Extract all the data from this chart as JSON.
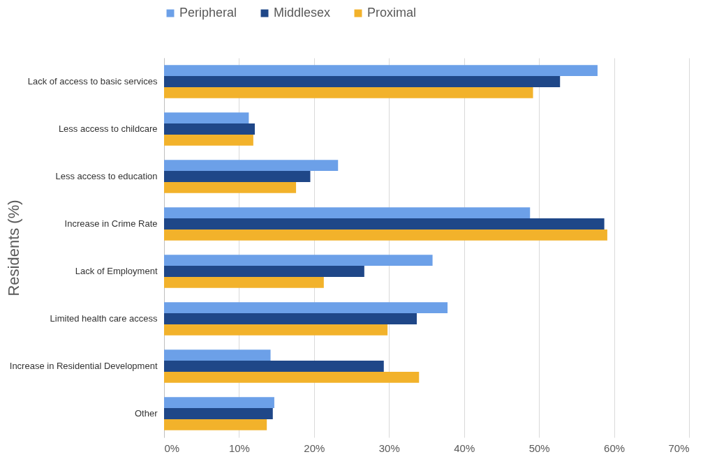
{
  "chart_data": {
    "type": "bar",
    "orientation": "horizontal",
    "ylabel": "Residents (%)",
    "categories": [
      "Lack of access to basic services",
      "Less access to childcare",
      "Less access to education",
      "Increase in Crime Rate",
      "Lack of Employment",
      "Limited health care access",
      "Increase in Residential Development",
      "Other"
    ],
    "series": [
      {
        "name": "Peripheral",
        "color": "#6ca0e8",
        "values": [
          57.8,
          11.3,
          23.2,
          48.8,
          35.8,
          37.8,
          14.2,
          14.7
        ]
      },
      {
        "name": "Middlesex",
        "color": "#1f4788",
        "values": [
          52.8,
          12.1,
          19.5,
          58.7,
          26.7,
          33.7,
          29.3,
          14.5
        ]
      },
      {
        "name": "Proximal",
        "color": "#f2b22b",
        "values": [
          49.2,
          11.9,
          17.6,
          59.1,
          21.3,
          29.8,
          34.0,
          13.7
        ]
      }
    ],
    "xlim": [
      0,
      70
    ],
    "xticks": [
      {
        "value": 0,
        "label": "0%"
      },
      {
        "value": 10,
        "label": "10%"
      },
      {
        "value": 20,
        "label": "20%"
      },
      {
        "value": 30,
        "label": "30%"
      },
      {
        "value": 40,
        "label": "40%"
      },
      {
        "value": 50,
        "label": "50%"
      },
      {
        "value": 60,
        "label": "60%"
      },
      {
        "value": 70,
        "label": "70%"
      }
    ],
    "grid": "x",
    "legend": "top"
  }
}
